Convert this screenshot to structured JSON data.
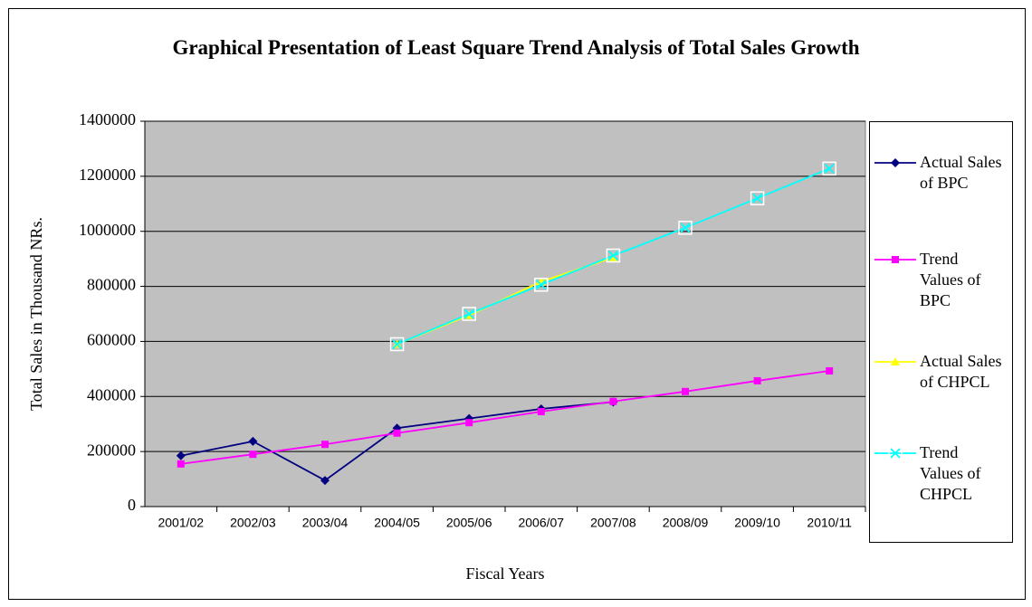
{
  "chart_data": {
    "type": "line",
    "title": "Graphical Presentation of Least Square Trend Analysis of Total Sales Growth",
    "x_label": "Fiscal Years",
    "y_label": "Total Sales in Thousand NRs.",
    "categories": [
      "2001/02",
      "2002/03",
      "2003/04",
      "2004/05",
      "2005/06",
      "2006/07",
      "2007/08",
      "2008/09",
      "2009/10",
      "2010/11"
    ],
    "series": [
      {
        "name": "Actual Sales of BPC",
        "color": "#000080",
        "marker": "diamond",
        "values": [
          185000,
          237000,
          95000,
          285000,
          320000,
          355000,
          380000,
          null,
          null,
          null
        ]
      },
      {
        "name": "Trend Values of BPC",
        "color": "#ff00ff",
        "marker": "square",
        "values": [
          155000,
          190000,
          226000,
          267000,
          305000,
          345000,
          382000,
          418000,
          457000,
          493000
        ]
      },
      {
        "name": "Actual Sales of CHPCL",
        "color": "#ffff00",
        "marker": "triangle",
        "values": [
          null,
          null,
          null,
          590000,
          695000,
          817000,
          905000,
          null,
          null,
          null
        ]
      },
      {
        "name": "Trend Values of CHPCL",
        "color": "#00ffff",
        "marker": "x",
        "values": [
          null,
          null,
          null,
          590000,
          700000,
          806000,
          912000,
          1013000,
          1120000,
          1228000
        ]
      }
    ],
    "ylim": [
      0,
      1400000
    ],
    "yticks": [
      0,
      200000,
      400000,
      600000,
      800000,
      1000000,
      1200000,
      1400000
    ],
    "grid": true,
    "legend": "right"
  }
}
